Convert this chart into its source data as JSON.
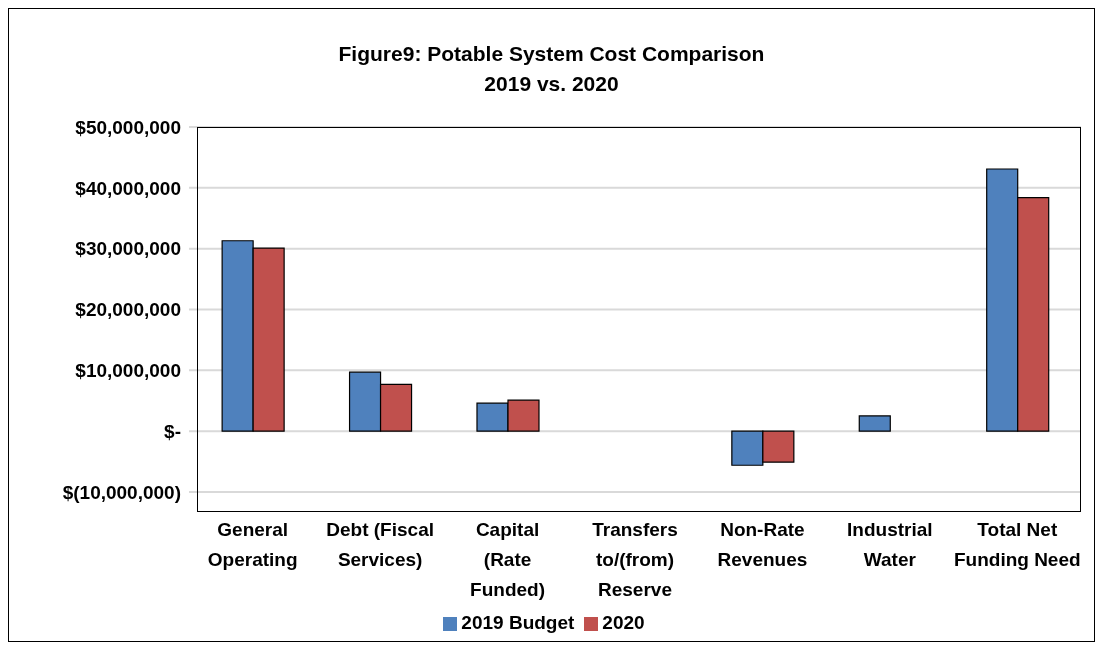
{
  "chart_data": {
    "type": "bar",
    "title": "Figure9: Potable System Cost Comparison",
    "subtitle": "2019 vs. 2020",
    "categories": [
      "General Operating",
      "Debt (Fiscal Services)",
      "Capital (Rate Funded)",
      "Transfers to/(from) Reserve",
      "Non-Rate Revenues",
      "Industrial Water",
      "Total Net Funding Need"
    ],
    "series": [
      {
        "name": "2019 Budget",
        "color": "#4f81bd",
        "values": [
          31300000,
          9700000,
          4600000,
          0,
          -5600000,
          2500000,
          43100000
        ]
      },
      {
        "name": "2020",
        "color": "#c0504d",
        "values": [
          30100000,
          7700000,
          5100000,
          0,
          -5100000,
          0,
          38400000
        ]
      }
    ],
    "ylim": [
      -10000000,
      50000000
    ],
    "yticks": [
      {
        "value": -10000000,
        "label": "$(10,000,000)"
      },
      {
        "value": 0,
        "label": "$-"
      },
      {
        "value": 10000000,
        "label": "$10,000,000"
      },
      {
        "value": 20000000,
        "label": "$20,000,000"
      },
      {
        "value": 30000000,
        "label": "$30,000,000"
      },
      {
        "value": 40000000,
        "label": "$40,000,000"
      },
      {
        "value": 50000000,
        "label": "$50,000,000"
      }
    ],
    "grid": "y",
    "legend": "bottom"
  }
}
